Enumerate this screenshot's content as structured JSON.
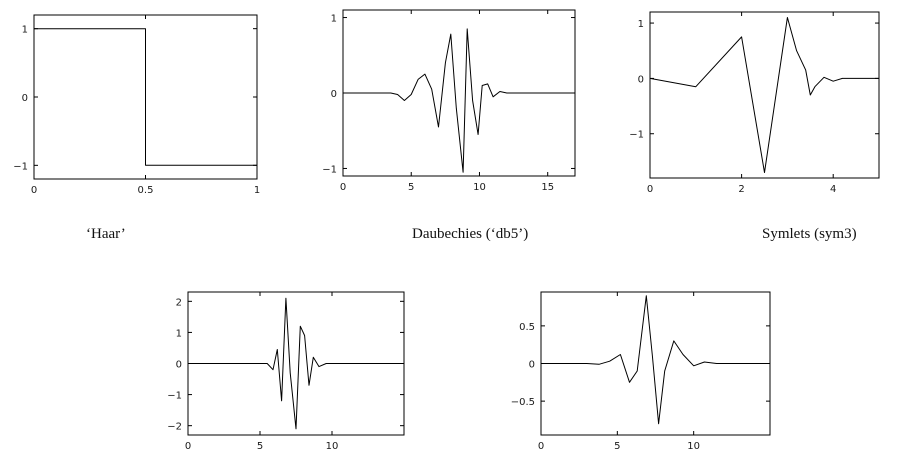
{
  "chart_data": [
    {
      "type": "line",
      "caption": "‘Haar’",
      "xlim": [
        0,
        1
      ],
      "ylim": [
        -1.2,
        1.2
      ],
      "xticks": [
        0,
        0.5,
        1
      ],
      "xtick_labels": [
        "0",
        "0.5",
        "1"
      ],
      "yticks": [
        1,
        0,
        -1
      ],
      "ytick_labels": [
        "1",
        "0",
        "−1"
      ],
      "series": [
        {
          "x": [
            0,
            0.5,
            0.5,
            1
          ],
          "y": [
            1,
            1,
            -1,
            -1
          ]
        }
      ]
    },
    {
      "type": "line",
      "caption": "Daubechies (‘db5’)",
      "xlim": [
        0,
        17
      ],
      "ylim": [
        -1.1,
        1.1
      ],
      "xticks": [
        0,
        5,
        10,
        15
      ],
      "xtick_labels": [
        "0",
        "5",
        "10",
        "15"
      ],
      "yticks": [
        1,
        0,
        -1
      ],
      "ytick_labels": [
        "1",
        "0",
        "−1"
      ],
      "series": [
        {
          "x": [
            0,
            3,
            3.5,
            4,
            4.5,
            5,
            5.5,
            6,
            6.5,
            7,
            7.5,
            7.9,
            8.3,
            8.8,
            9.1,
            9.5,
            9.9,
            10.2,
            10.6,
            11,
            11.5,
            12,
            17
          ],
          "y": [
            0,
            0,
            0,
            -0.02,
            -0.1,
            -0.02,
            0.18,
            0.25,
            0.05,
            -0.45,
            0.4,
            0.78,
            -0.2,
            -1.05,
            0.85,
            -0.1,
            -0.55,
            0.1,
            0.12,
            -0.05,
            0.02,
            0,
            0
          ]
        }
      ]
    },
    {
      "type": "line",
      "caption": "Symlets (sym3)",
      "xlim": [
        0,
        5
      ],
      "ylim": [
        -1.8,
        1.2
      ],
      "xticks": [
        0,
        2,
        4
      ],
      "xtick_labels": [
        "0",
        "2",
        "4"
      ],
      "yticks": [
        1,
        0,
        -1
      ],
      "ytick_labels": [
        "1",
        "0",
        "−1"
      ],
      "series": [
        {
          "x": [
            0,
            1,
            2,
            2.5,
            3,
            3.2,
            3.4,
            3.5,
            3.6,
            3.8,
            4,
            4.2,
            5
          ],
          "y": [
            0,
            -0.15,
            0.75,
            -1.7,
            1.1,
            0.5,
            0.15,
            -0.3,
            -0.15,
            0.02,
            -0.05,
            0,
            0
          ]
        }
      ]
    },
    {
      "type": "line",
      "caption": "",
      "xlim": [
        0,
        15
      ],
      "ylim": [
        -2.3,
        2.3
      ],
      "xticks": [
        0,
        5,
        10
      ],
      "xtick_labels": [
        "0",
        "5",
        "10"
      ],
      "yticks": [
        2,
        1,
        0,
        -1,
        -2
      ],
      "ytick_labels": [
        "2",
        "1",
        "0",
        "−1",
        "−2"
      ],
      "series": [
        {
          "x": [
            0,
            5.5,
            5.9,
            6.2,
            6.5,
            6.8,
            7.1,
            7.5,
            7.8,
            8.1,
            8.4,
            8.7,
            9.1,
            9.6,
            15
          ],
          "y": [
            0,
            0,
            -0.2,
            0.45,
            -1.2,
            2.1,
            -0.3,
            -2.1,
            1.2,
            0.9,
            -0.7,
            0.2,
            -0.1,
            0,
            0
          ]
        }
      ]
    },
    {
      "type": "line",
      "caption": "",
      "xlim": [
        0,
        15
      ],
      "ylim": [
        -0.95,
        0.95
      ],
      "xticks": [
        0,
        5,
        10
      ],
      "xtick_labels": [
        "0",
        "5",
        "10"
      ],
      "yticks": [
        0.5,
        0,
        -0.5
      ],
      "ytick_labels": [
        "0.5",
        "0",
        "−0.5"
      ],
      "series": [
        {
          "x": [
            0,
            3,
            3.8,
            4.5,
            5.2,
            5.8,
            6.3,
            6.9,
            7.3,
            7.7,
            8.1,
            8.7,
            9.3,
            10,
            10.7,
            11.5,
            15
          ],
          "y": [
            0,
            0,
            -0.01,
            0.03,
            0.12,
            -0.25,
            -0.1,
            0.9,
            0.1,
            -0.8,
            -0.1,
            0.3,
            0.12,
            -0.03,
            0.02,
            0,
            0
          ]
        }
      ]
    }
  ]
}
